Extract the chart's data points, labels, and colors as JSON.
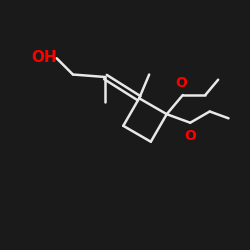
{
  "bg_color": "#1a1a1a",
  "bond_color": "#e8e8e8",
  "O_color": "red",
  "lw": 1.8,
  "figsize": [
    2.5,
    2.5
  ],
  "dpi": 100,
  "xlim": [
    0,
    10
  ],
  "ylim": [
    0,
    10
  ],
  "OH_fontsize": 11,
  "O_fontsize": 10
}
